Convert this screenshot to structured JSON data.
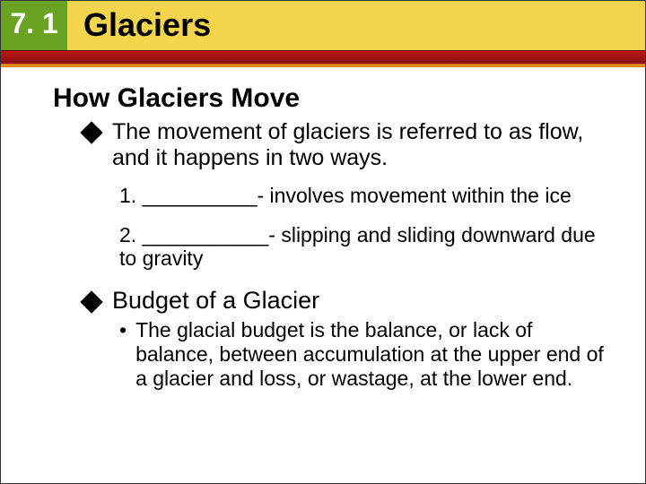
{
  "header": {
    "section_number": "7. 1",
    "title": "Glaciers",
    "colors": {
      "green": "#6aa221",
      "yellow": "#f4d44a",
      "red_top": "#b81818",
      "red_bottom": "#8a0e0e",
      "orange": "#e28a1a",
      "text_black": "#000000",
      "text_white": "#ffffff"
    }
  },
  "content": {
    "heading": "How Glaciers Move",
    "bullet1": "The movement of glaciers is referred to as flow, and it happens in two ways.",
    "numbered": {
      "item1": "1. __________- involves movement within the ice",
      "item2": "2. ___________- slipping and sliding downward due to gravity"
    },
    "heading2": "Budget of a Glacier",
    "detail": "The glacial budget is the balance, or lack of balance, between accumulation at the upper end of a glacier and loss, or wastage, at the lower end."
  },
  "layout": {
    "slide_width": 720,
    "slide_height": 540,
    "font_family": "Arial",
    "heading_fontsize": 30,
    "body_fontsize": 25,
    "sub_fontsize": 23,
    "background_color": "#ffffff"
  }
}
